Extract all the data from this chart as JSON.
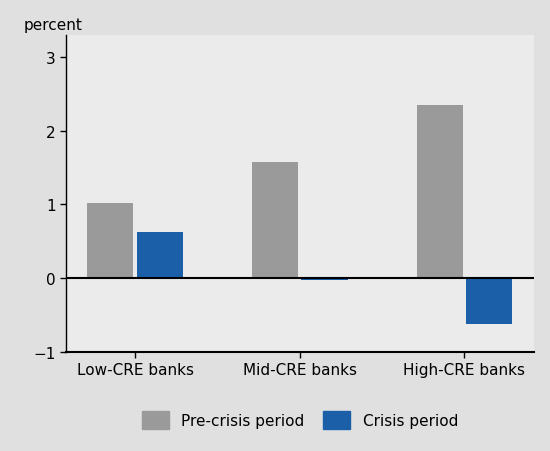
{
  "categories": [
    "Low-CRE banks",
    "Mid-CRE banks",
    "High-CRE banks"
  ],
  "pre_crisis": [
    1.02,
    1.57,
    2.35
  ],
  "crisis": [
    0.62,
    -0.03,
    -0.62
  ],
  "pre_crisis_color": "#9a9a9a",
  "crisis_color": "#1a5fa8",
  "ylabel": "percent",
  "ylim": [
    -1.0,
    3.3
  ],
  "yticks": [
    -1,
    0,
    1,
    2,
    3
  ],
  "outer_background": "#e0e0e0",
  "plot_background": "#ebebeb",
  "bar_width": 0.28,
  "legend_labels": [
    "Pre-crisis period",
    "Crisis period"
  ],
  "font_size": 11
}
